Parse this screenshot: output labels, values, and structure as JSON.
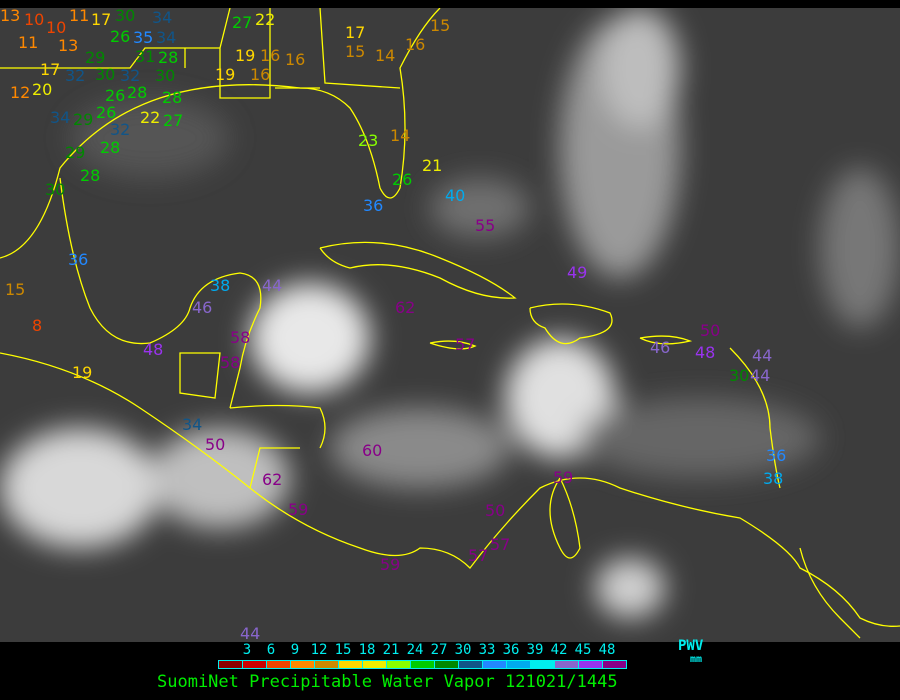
{
  "legend": {
    "unit": "PWV",
    "unit_sub": "mm",
    "ticks": [
      "3",
      "6",
      "9",
      "12",
      "15",
      "18",
      "21",
      "24",
      "27",
      "30",
      "33",
      "36",
      "39",
      "42",
      "45",
      "48"
    ],
    "colors": [
      "#8b0000",
      "#cc0000",
      "#ee4400",
      "#ff8800",
      "#cc8800",
      "#ffd700",
      "#eeee00",
      "#88ff00",
      "#00cc00",
      "#008800",
      "#115588",
      "#2288ff",
      "#00aaee",
      "#00eeee",
      "#8866cc",
      "#9933ee",
      "#880088"
    ]
  },
  "title": "SuomiNet Precipitable Water Vapor 121021/1445",
  "coastline_color": "#ffff00",
  "stations": [
    "13",
    "10",
    "10",
    "11",
    "13",
    "11",
    "17",
    "30",
    "26",
    "35",
    "34",
    "34",
    "31",
    "28",
    "29",
    "30",
    "32",
    "32",
    "30",
    "17",
    "12",
    "20",
    "26",
    "28",
    "28",
    "34",
    "29",
    "26",
    "32",
    "22",
    "27",
    "29",
    "28",
    "28",
    "30",
    "27",
    "22",
    "19",
    "16",
    "16",
    "19",
    "16",
    "17",
    "15",
    "14",
    "16",
    "15",
    "14",
    "23",
    "21",
    "26",
    "36",
    "40",
    "55",
    "49",
    "36",
    "15",
    "8",
    "38",
    "44",
    "46",
    "62",
    "48",
    "58",
    "58",
    "19",
    "57",
    "46",
    "50",
    "48",
    "44",
    "44",
    "30",
    "34",
    "50",
    "60",
    "36",
    "38",
    "59",
    "62",
    "59",
    "50",
    "57",
    "57",
    "59",
    "44"
  ]
}
